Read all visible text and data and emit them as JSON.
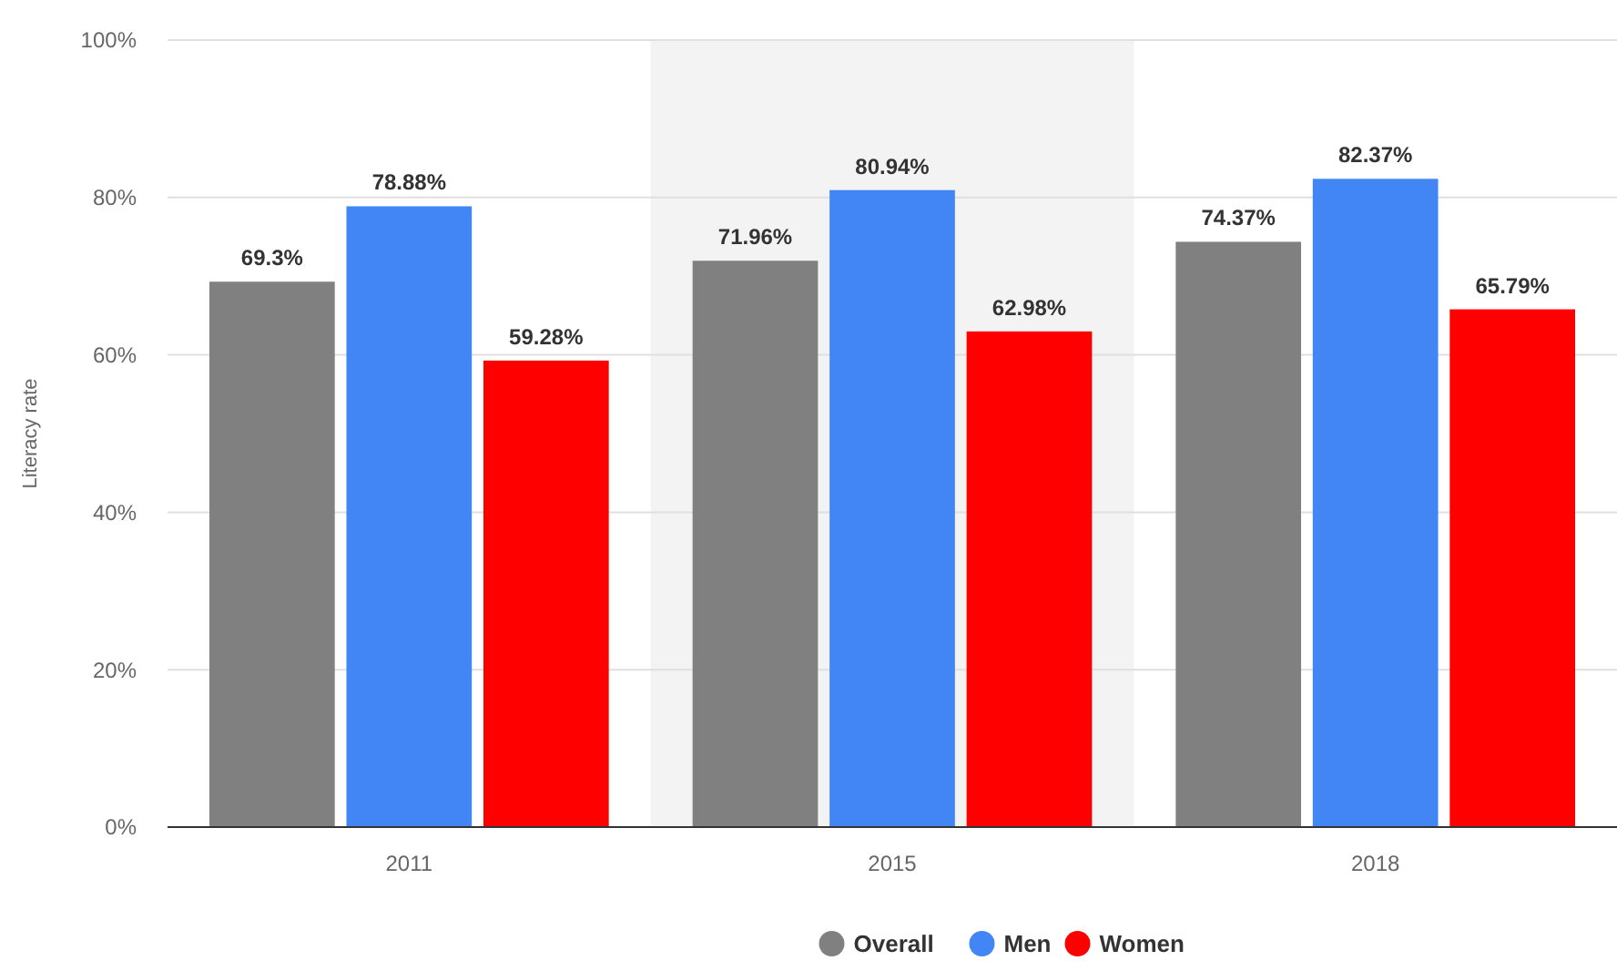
{
  "chart_data": {
    "type": "bar",
    "ylabel": "Literacy rate",
    "categories": [
      "2011",
      "2015",
      "2018"
    ],
    "series": [
      {
        "name": "Overall",
        "color": "#808080",
        "values": [
          69.3,
          71.96,
          74.37
        ]
      },
      {
        "name": "Men",
        "color": "#4285f4",
        "values": [
          78.88,
          80.94,
          82.37
        ]
      },
      {
        "name": "Women",
        "color": "#ff0000",
        "values": [
          59.28,
          62.98,
          65.79
        ]
      }
    ],
    "value_labels": [
      [
        "69.3%",
        "71.96%",
        "74.37%"
      ],
      [
        "78.88%",
        "80.94%",
        "82.37%"
      ],
      [
        "59.28%",
        "62.98%",
        "65.79%"
      ]
    ],
    "ylim": [
      0,
      100
    ],
    "yticks": [
      {
        "value": 0,
        "label": "0%"
      },
      {
        "value": 20,
        "label": "20%"
      },
      {
        "value": 40,
        "label": "40%"
      },
      {
        "value": 60,
        "label": "60%"
      },
      {
        "value": 80,
        "label": "80%"
      },
      {
        "value": 100,
        "label": "100%"
      }
    ],
    "bands": [
      {
        "axis": "x",
        "from": "2015",
        "to": "2015",
        "color": "#f3f3f3"
      }
    ],
    "grid": "y",
    "legend": "bottom"
  }
}
